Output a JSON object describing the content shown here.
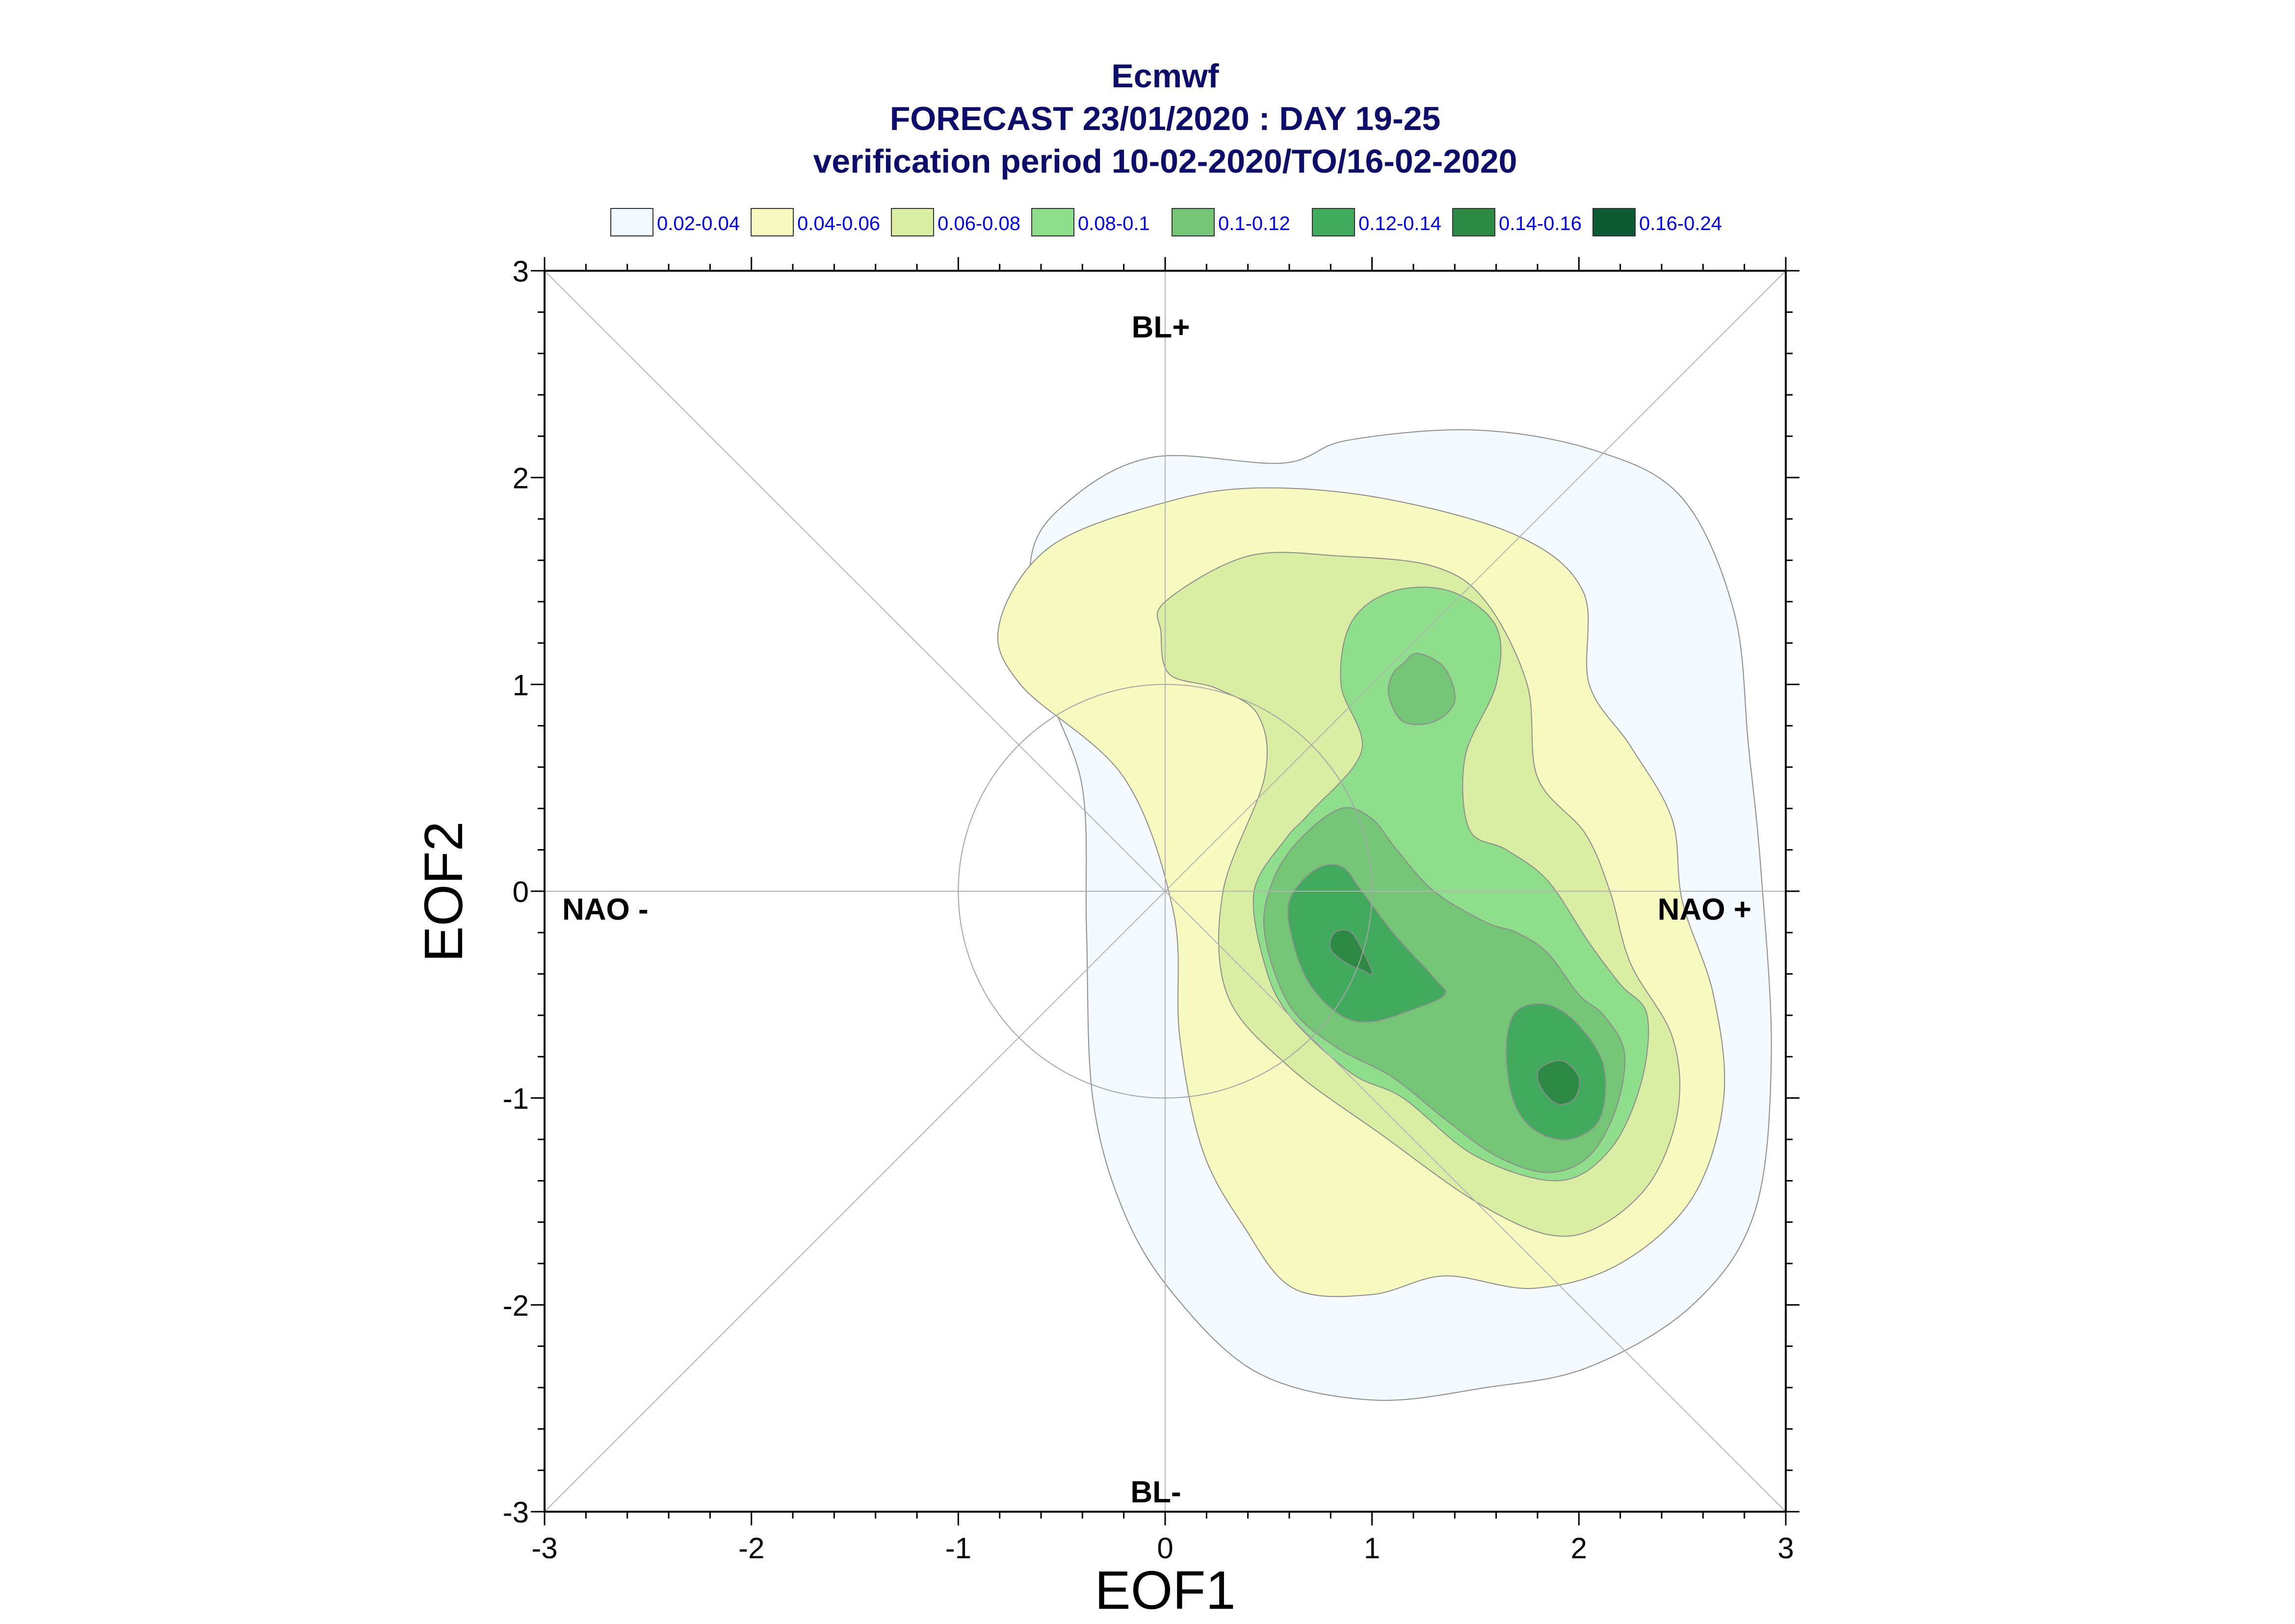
{
  "chart_data": {
    "type": "contour",
    "title_lines": [
      "Ecmwf",
      "FORECAST 23/01/2020 : DAY 19-25",
      "verification period 10-02-2020/TO/16-02-2020"
    ],
    "legend": [
      {
        "label": "0.02-0.04",
        "color": "#f4f9fd"
      },
      {
        "label": "0.04-0.06",
        "color": "#f7fabf"
      },
      {
        "label": "0.06-0.08",
        "color": "#daeea3"
      },
      {
        "label": "0.08-0.1",
        "color": "#8ede8b"
      },
      {
        "label": "0.1-0.12",
        "color": "#75c577"
      },
      {
        "label": "0.12-0.14",
        "color": "#41aa5d"
      },
      {
        "label": "0.14-0.16",
        "color": "#2c8a45"
      },
      {
        "label": "0.16-0.24",
        "color": "#0d5a30"
      }
    ],
    "xlabel": "EOF1",
    "ylabel": "EOF2",
    "xlim": [
      -3,
      3
    ],
    "ylim": [
      -3,
      3
    ],
    "xticks": [
      "-3",
      "-2",
      "-1",
      "0",
      "1",
      "2",
      "3"
    ],
    "yticks": [
      "-3",
      "-2",
      "-1",
      "0",
      "1",
      "2",
      "3"
    ],
    "region_labels": {
      "top": "BL+",
      "bottom": "BL-",
      "left": "NAO -",
      "right": "NAO +"
    },
    "reference_circle_radius": 1,
    "contours": [
      {
        "level": 0,
        "points": [
          [
            0.57,
            2.07
          ],
          [
            0.88,
            2.18
          ],
          [
            1.5,
            2.23
          ],
          [
            2.08,
            2.13
          ],
          [
            2.5,
            1.9
          ],
          [
            2.75,
            1.35
          ],
          [
            2.82,
            0.7
          ],
          [
            2.88,
            0.1
          ],
          [
            2.93,
            -0.8
          ],
          [
            2.85,
            -1.55
          ],
          [
            2.55,
            -2.0
          ],
          [
            2.05,
            -2.3
          ],
          [
            1.55,
            -2.4
          ],
          [
            1.0,
            -2.46
          ],
          [
            0.45,
            -2.33
          ],
          [
            0.05,
            -1.96
          ],
          [
            -0.2,
            -1.55
          ],
          [
            -0.35,
            -1.0
          ],
          [
            -0.38,
            -0.2
          ],
          [
            -0.4,
            0.5
          ],
          [
            -0.57,
            1.0
          ],
          [
            -0.65,
            1.6
          ],
          [
            -0.45,
            1.9
          ],
          [
            -0.05,
            2.1
          ]
        ]
      },
      {
        "level": 1,
        "points": [
          [
            0.0,
            1.88
          ],
          [
            0.45,
            1.95
          ],
          [
            1.05,
            1.9
          ],
          [
            1.7,
            1.72
          ],
          [
            2.02,
            1.45
          ],
          [
            2.05,
            1.0
          ],
          [
            2.25,
            0.7
          ],
          [
            2.45,
            0.35
          ],
          [
            2.5,
            -0.05
          ],
          [
            2.65,
            -0.5
          ],
          [
            2.7,
            -1.0
          ],
          [
            2.55,
            -1.48
          ],
          [
            2.2,
            -1.8
          ],
          [
            1.78,
            -1.92
          ],
          [
            1.35,
            -1.86
          ],
          [
            1.0,
            -1.95
          ],
          [
            0.62,
            -1.92
          ],
          [
            0.38,
            -1.62
          ],
          [
            0.18,
            -1.25
          ],
          [
            0.07,
            -0.7
          ],
          [
            0.04,
            -0.1
          ],
          [
            -0.2,
            0.55
          ],
          [
            -0.7,
            1.0
          ],
          [
            -0.8,
            1.3
          ],
          [
            -0.55,
            1.67
          ]
        ]
      },
      {
        "level": 2,
        "points": [
          [
            0.0,
            1.4
          ],
          [
            0.4,
            1.62
          ],
          [
            0.85,
            1.62
          ],
          [
            1.3,
            1.57
          ],
          [
            1.55,
            1.4
          ],
          [
            1.75,
            1.0
          ],
          [
            1.8,
            0.55
          ],
          [
            2.03,
            0.28
          ],
          [
            2.15,
            0.0
          ],
          [
            2.25,
            -0.35
          ],
          [
            2.45,
            -0.7
          ],
          [
            2.48,
            -1.05
          ],
          [
            2.35,
            -1.4
          ],
          [
            2.1,
            -1.62
          ],
          [
            1.85,
            -1.66
          ],
          [
            1.5,
            -1.5
          ],
          [
            1.05,
            -1.18
          ],
          [
            0.6,
            -0.85
          ],
          [
            0.3,
            -0.5
          ],
          [
            0.28,
            0.0
          ],
          [
            0.48,
            0.55
          ],
          [
            0.45,
            0.85
          ],
          [
            0.25,
            0.98
          ],
          [
            0.02,
            1.05
          ],
          [
            -0.02,
            1.25
          ]
        ]
      },
      {
        "level": 3,
        "points": [
          [
            0.9,
            1.3
          ],
          [
            1.1,
            1.45
          ],
          [
            1.38,
            1.45
          ],
          [
            1.6,
            1.28
          ],
          [
            1.6,
            1.0
          ],
          [
            1.45,
            0.65
          ],
          [
            1.47,
            0.3
          ],
          [
            1.65,
            0.2
          ],
          [
            1.85,
            0.05
          ],
          [
            2.05,
            -0.25
          ],
          [
            2.2,
            -0.45
          ],
          [
            2.33,
            -0.6
          ],
          [
            2.3,
            -0.93
          ],
          [
            2.15,
            -1.25
          ],
          [
            1.9,
            -1.4
          ],
          [
            1.5,
            -1.28
          ],
          [
            1.15,
            -1.0
          ],
          [
            0.9,
            -0.88
          ],
          [
            0.6,
            -0.6
          ],
          [
            0.48,
            -0.35
          ],
          [
            0.43,
            0.0
          ],
          [
            0.58,
            0.25
          ],
          [
            0.7,
            0.38
          ],
          [
            0.95,
            0.68
          ],
          [
            0.85,
            1.0
          ]
        ]
      },
      {
        "level": 4,
        "points": [
          [
            1.15,
            1.1
          ],
          [
            1.22,
            1.15
          ],
          [
            1.35,
            1.08
          ],
          [
            1.4,
            0.92
          ],
          [
            1.3,
            0.82
          ],
          [
            1.15,
            0.82
          ],
          [
            1.08,
            0.95
          ],
          [
            1.1,
            1.05
          ]
        ]
      },
      {
        "level": 4,
        "points": [
          [
            0.65,
            0.25
          ],
          [
            0.85,
            0.4
          ],
          [
            1.0,
            0.35
          ],
          [
            1.12,
            0.2
          ],
          [
            1.3,
            0.0
          ],
          [
            1.55,
            -0.15
          ],
          [
            1.7,
            -0.2
          ],
          [
            1.85,
            -0.3
          ],
          [
            2.0,
            -0.5
          ],
          [
            2.12,
            -0.6
          ],
          [
            2.22,
            -0.78
          ],
          [
            2.18,
            -1.05
          ],
          [
            2.05,
            -1.28
          ],
          [
            1.85,
            -1.36
          ],
          [
            1.6,
            -1.28
          ],
          [
            1.35,
            -1.1
          ],
          [
            1.1,
            -0.9
          ],
          [
            0.82,
            -0.75
          ],
          [
            0.6,
            -0.55
          ],
          [
            0.48,
            -0.2
          ],
          [
            0.52,
            0.05
          ]
        ]
      },
      {
        "level": 5,
        "points": [
          [
            0.6,
            -0.05
          ],
          [
            0.72,
            0.1
          ],
          [
            0.85,
            0.12
          ],
          [
            0.95,
            0.0
          ],
          [
            1.1,
            -0.2
          ],
          [
            1.3,
            -0.42
          ],
          [
            1.35,
            -0.5
          ],
          [
            1.2,
            -0.57
          ],
          [
            1.0,
            -0.63
          ],
          [
            0.85,
            -0.6
          ],
          [
            0.7,
            -0.45
          ],
          [
            0.62,
            -0.25
          ]
        ]
      },
      {
        "level": 5,
        "points": [
          [
            1.7,
            -0.58
          ],
          [
            1.85,
            -0.55
          ],
          [
            2.0,
            -0.65
          ],
          [
            2.12,
            -0.85
          ],
          [
            2.1,
            -1.1
          ],
          [
            1.95,
            -1.2
          ],
          [
            1.78,
            -1.15
          ],
          [
            1.68,
            -1.0
          ],
          [
            1.65,
            -0.75
          ]
        ]
      },
      {
        "level": 6,
        "points": [
          [
            0.82,
            -0.2
          ],
          [
            0.9,
            -0.2
          ],
          [
            0.97,
            -0.32
          ],
          [
            1.0,
            -0.4
          ],
          [
            0.95,
            -0.38
          ],
          [
            0.88,
            -0.35
          ],
          [
            0.8,
            -0.28
          ]
        ]
      },
      {
        "level": 6,
        "points": [
          [
            1.82,
            -0.85
          ],
          [
            1.92,
            -0.82
          ],
          [
            2.0,
            -0.9
          ],
          [
            1.98,
            -1.0
          ],
          [
            1.9,
            -1.03
          ],
          [
            1.83,
            -0.97
          ],
          [
            1.8,
            -0.9
          ]
        ]
      }
    ]
  }
}
